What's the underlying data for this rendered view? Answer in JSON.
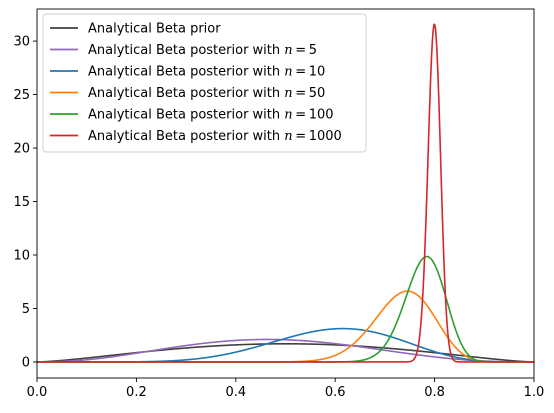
{
  "chart_data": {
    "type": "line",
    "title": "",
    "xlabel": "",
    "ylabel": "",
    "xlim": [
      0,
      1
    ],
    "ylim": [
      -1.5,
      33
    ],
    "x_ticks": [
      0.0,
      0.2,
      0.4,
      0.6,
      0.8,
      1.0
    ],
    "x_tick_labels": [
      "0.0",
      "0.2",
      "0.4",
      "0.6",
      "0.8",
      "1.0"
    ],
    "y_ticks": [
      0,
      5,
      10,
      15,
      20,
      25,
      30
    ],
    "y_tick_labels": [
      "0",
      "5",
      "10",
      "15",
      "20",
      "25",
      "30"
    ],
    "grid": false,
    "legend_position": "top-left",
    "series": [
      {
        "name": "Analytical Beta prior",
        "label_prefix": "Analytical Beta prior",
        "label_math": "",
        "color": "#404040",
        "distribution": "beta",
        "alpha": 2.5,
        "beta": 2.5
      },
      {
        "name": "Analytical Beta posterior with n = 5",
        "label_prefix": "Analytical Beta posterior with ",
        "label_math": "n = 5",
        "color": "#9467bd",
        "distribution": "beta",
        "alpha": 3.5,
        "beta": 3.9
      },
      {
        "name": "Analytical Beta posterior with n = 10",
        "label_prefix": "Analytical Beta posterior with ",
        "label_math": "n = 10",
        "color": "#1f77b4",
        "distribution": "beta",
        "alpha": 9,
        "beta": 6
      },
      {
        "name": "Analytical Beta posterior with n = 50",
        "label_prefix": "Analytical Beta posterior with ",
        "label_math": "n = 50",
        "color": "#ff7f0e",
        "distribution": "beta",
        "alpha": 39,
        "beta": 14
      },
      {
        "name": "Analytical Beta posterior with n = 100",
        "label_prefix": "Analytical Beta posterior with ",
        "label_math": "n = 100",
        "color": "#2ca02c",
        "distribution": "beta",
        "alpha": 81,
        "beta": 23
      },
      {
        "name": "Analytical Beta posterior with n = 1000",
        "label_prefix": "Analytical Beta posterior with ",
        "label_math": "n = 1000",
        "color": "#d62728",
        "distribution": "beta",
        "alpha": 803,
        "beta": 202
      }
    ]
  }
}
